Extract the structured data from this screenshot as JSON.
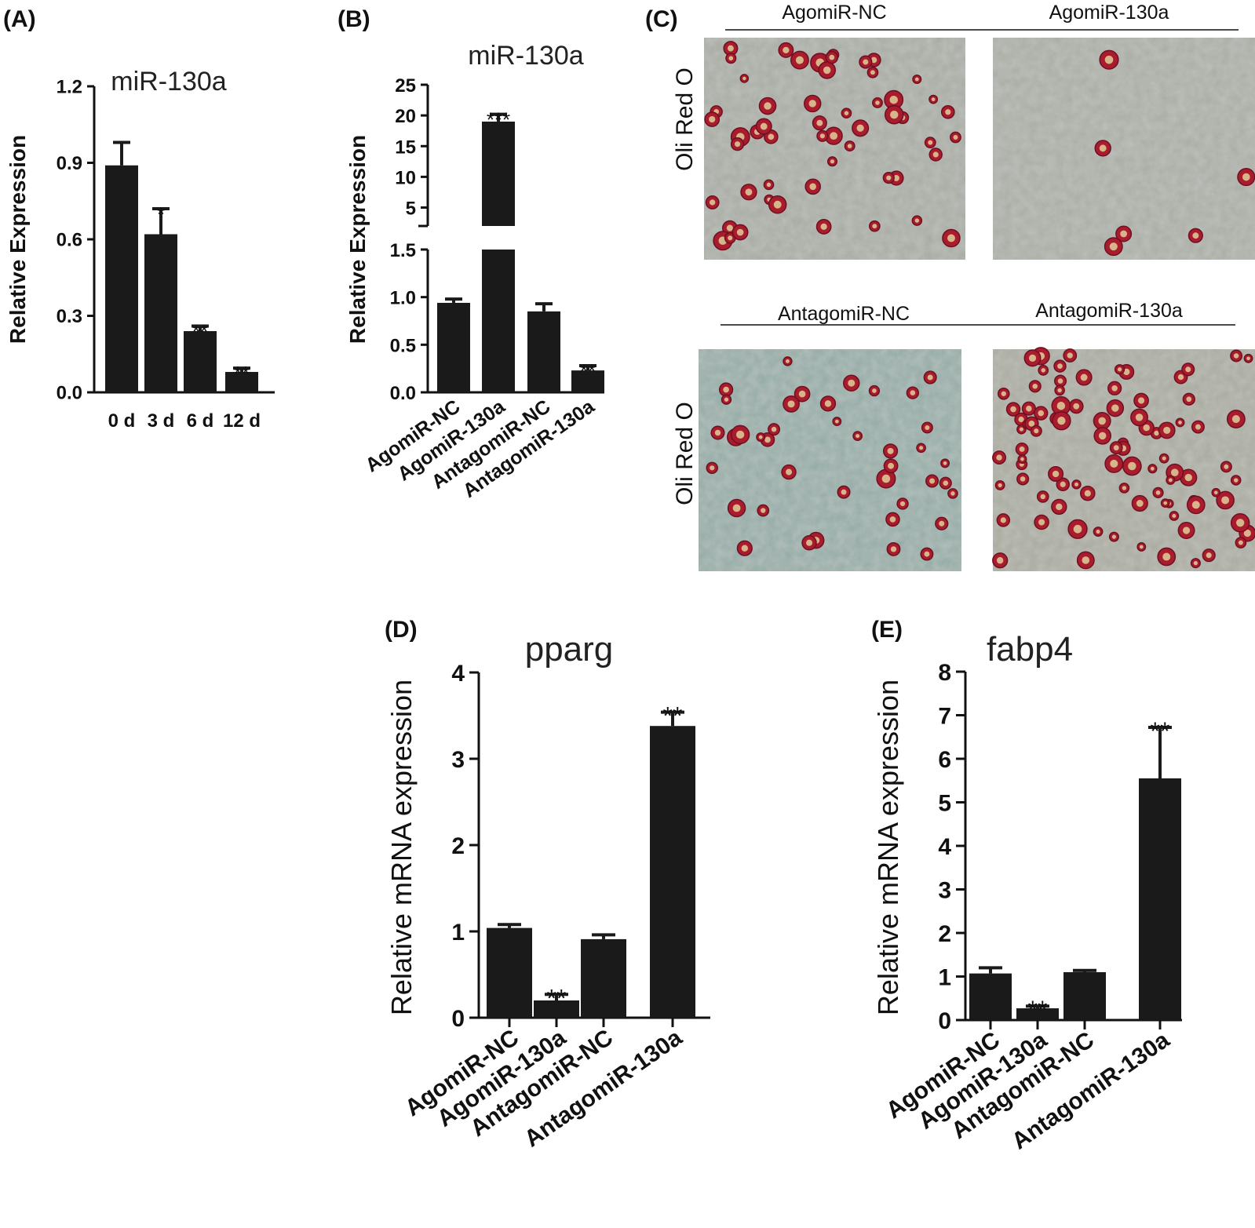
{
  "colors": {
    "bar": "#1a1a1a",
    "axis": "#111111",
    "stain_bg_a": "#a9aca2",
    "stain_bg_b": "#8fa7a0",
    "droplet": "#a81c2e"
  },
  "panels": {
    "A": {
      "label": "(A)"
    },
    "B": {
      "label": "(B)"
    },
    "C": {
      "label": "(C)",
      "groups": [
        "AgomiR-NC",
        "AgomiR-130a",
        "AntagomiR-NC",
        "AntagomiR-130a"
      ],
      "row_label": "Oli Red O"
    },
    "D": {
      "label": "(D)"
    },
    "E": {
      "label": "(E)"
    }
  },
  "chart_data": [
    {
      "panel": "A",
      "type": "bar",
      "title": "miR-130a",
      "xlabel": "",
      "ylabel": "Relative Expression",
      "categories": [
        "0 d",
        "3 d",
        "6 d",
        "12 d"
      ],
      "values": [
        0.89,
        0.62,
        0.24,
        0.08
      ],
      "errors": [
        0.09,
        0.1,
        0.02,
        0.015
      ],
      "significance": [
        "",
        "*",
        "**",
        "**"
      ],
      "ylim": [
        0,
        1.2
      ],
      "yticks": [
        "0.0",
        "0.3",
        "0.6",
        "0.9",
        "1.2"
      ]
    },
    {
      "panel": "B",
      "type": "bar",
      "title": "miR-130a",
      "xlabel": "",
      "ylabel": "Relative Expression",
      "categories": [
        "AgomiR-NC",
        "AgomiR-130a",
        "AntagomiR-NC",
        "AntagomiR-130a"
      ],
      "values": [
        0.94,
        19.0,
        0.85,
        0.23
      ],
      "errors": [
        0.04,
        1.2,
        0.08,
        0.05
      ],
      "significance": [
        "",
        "***",
        "",
        "**"
      ],
      "broken_axis": true,
      "ylim_lower": [
        0,
        1.5
      ],
      "ylim_upper": [
        2,
        25
      ],
      "yticks_lower": [
        "0.0",
        "0.5",
        "1.0",
        "1.5"
      ],
      "yticks_upper": [
        "5",
        "10",
        "15",
        "20",
        "25"
      ]
    },
    {
      "panel": "D",
      "type": "bar",
      "title": "pparg",
      "xlabel": "",
      "ylabel": "Relative mRNA expression",
      "categories": [
        "AgomiR-NC",
        "AgomiR-130a",
        "AntagomiR-NC",
        "AntagomiR-130a"
      ],
      "values": [
        1.04,
        0.2,
        0.91,
        3.38
      ],
      "errors": [
        0.04,
        0.07,
        0.05,
        0.16
      ],
      "significance": [
        "",
        "**",
        "",
        "**"
      ],
      "ylim": [
        0,
        4
      ],
      "yticks": [
        "0",
        "1",
        "2",
        "3",
        "4"
      ]
    },
    {
      "panel": "E",
      "type": "bar",
      "title": "fabp4",
      "xlabel": "",
      "ylabel": "Relative mRNA expression",
      "categories": [
        "AgomiR-NC",
        "AgomiR-130a",
        "AntagomiR-NC",
        "AntagomiR-130a"
      ],
      "values": [
        1.07,
        0.27,
        1.1,
        5.55
      ],
      "errors": [
        0.13,
        0.05,
        0.04,
        1.17
      ],
      "significance": [
        "",
        "**",
        "",
        "**"
      ],
      "ylim": [
        0,
        8
      ],
      "yticks": [
        "0",
        "1",
        "2",
        "3",
        "4",
        "5",
        "6",
        "7",
        "8"
      ]
    }
  ]
}
